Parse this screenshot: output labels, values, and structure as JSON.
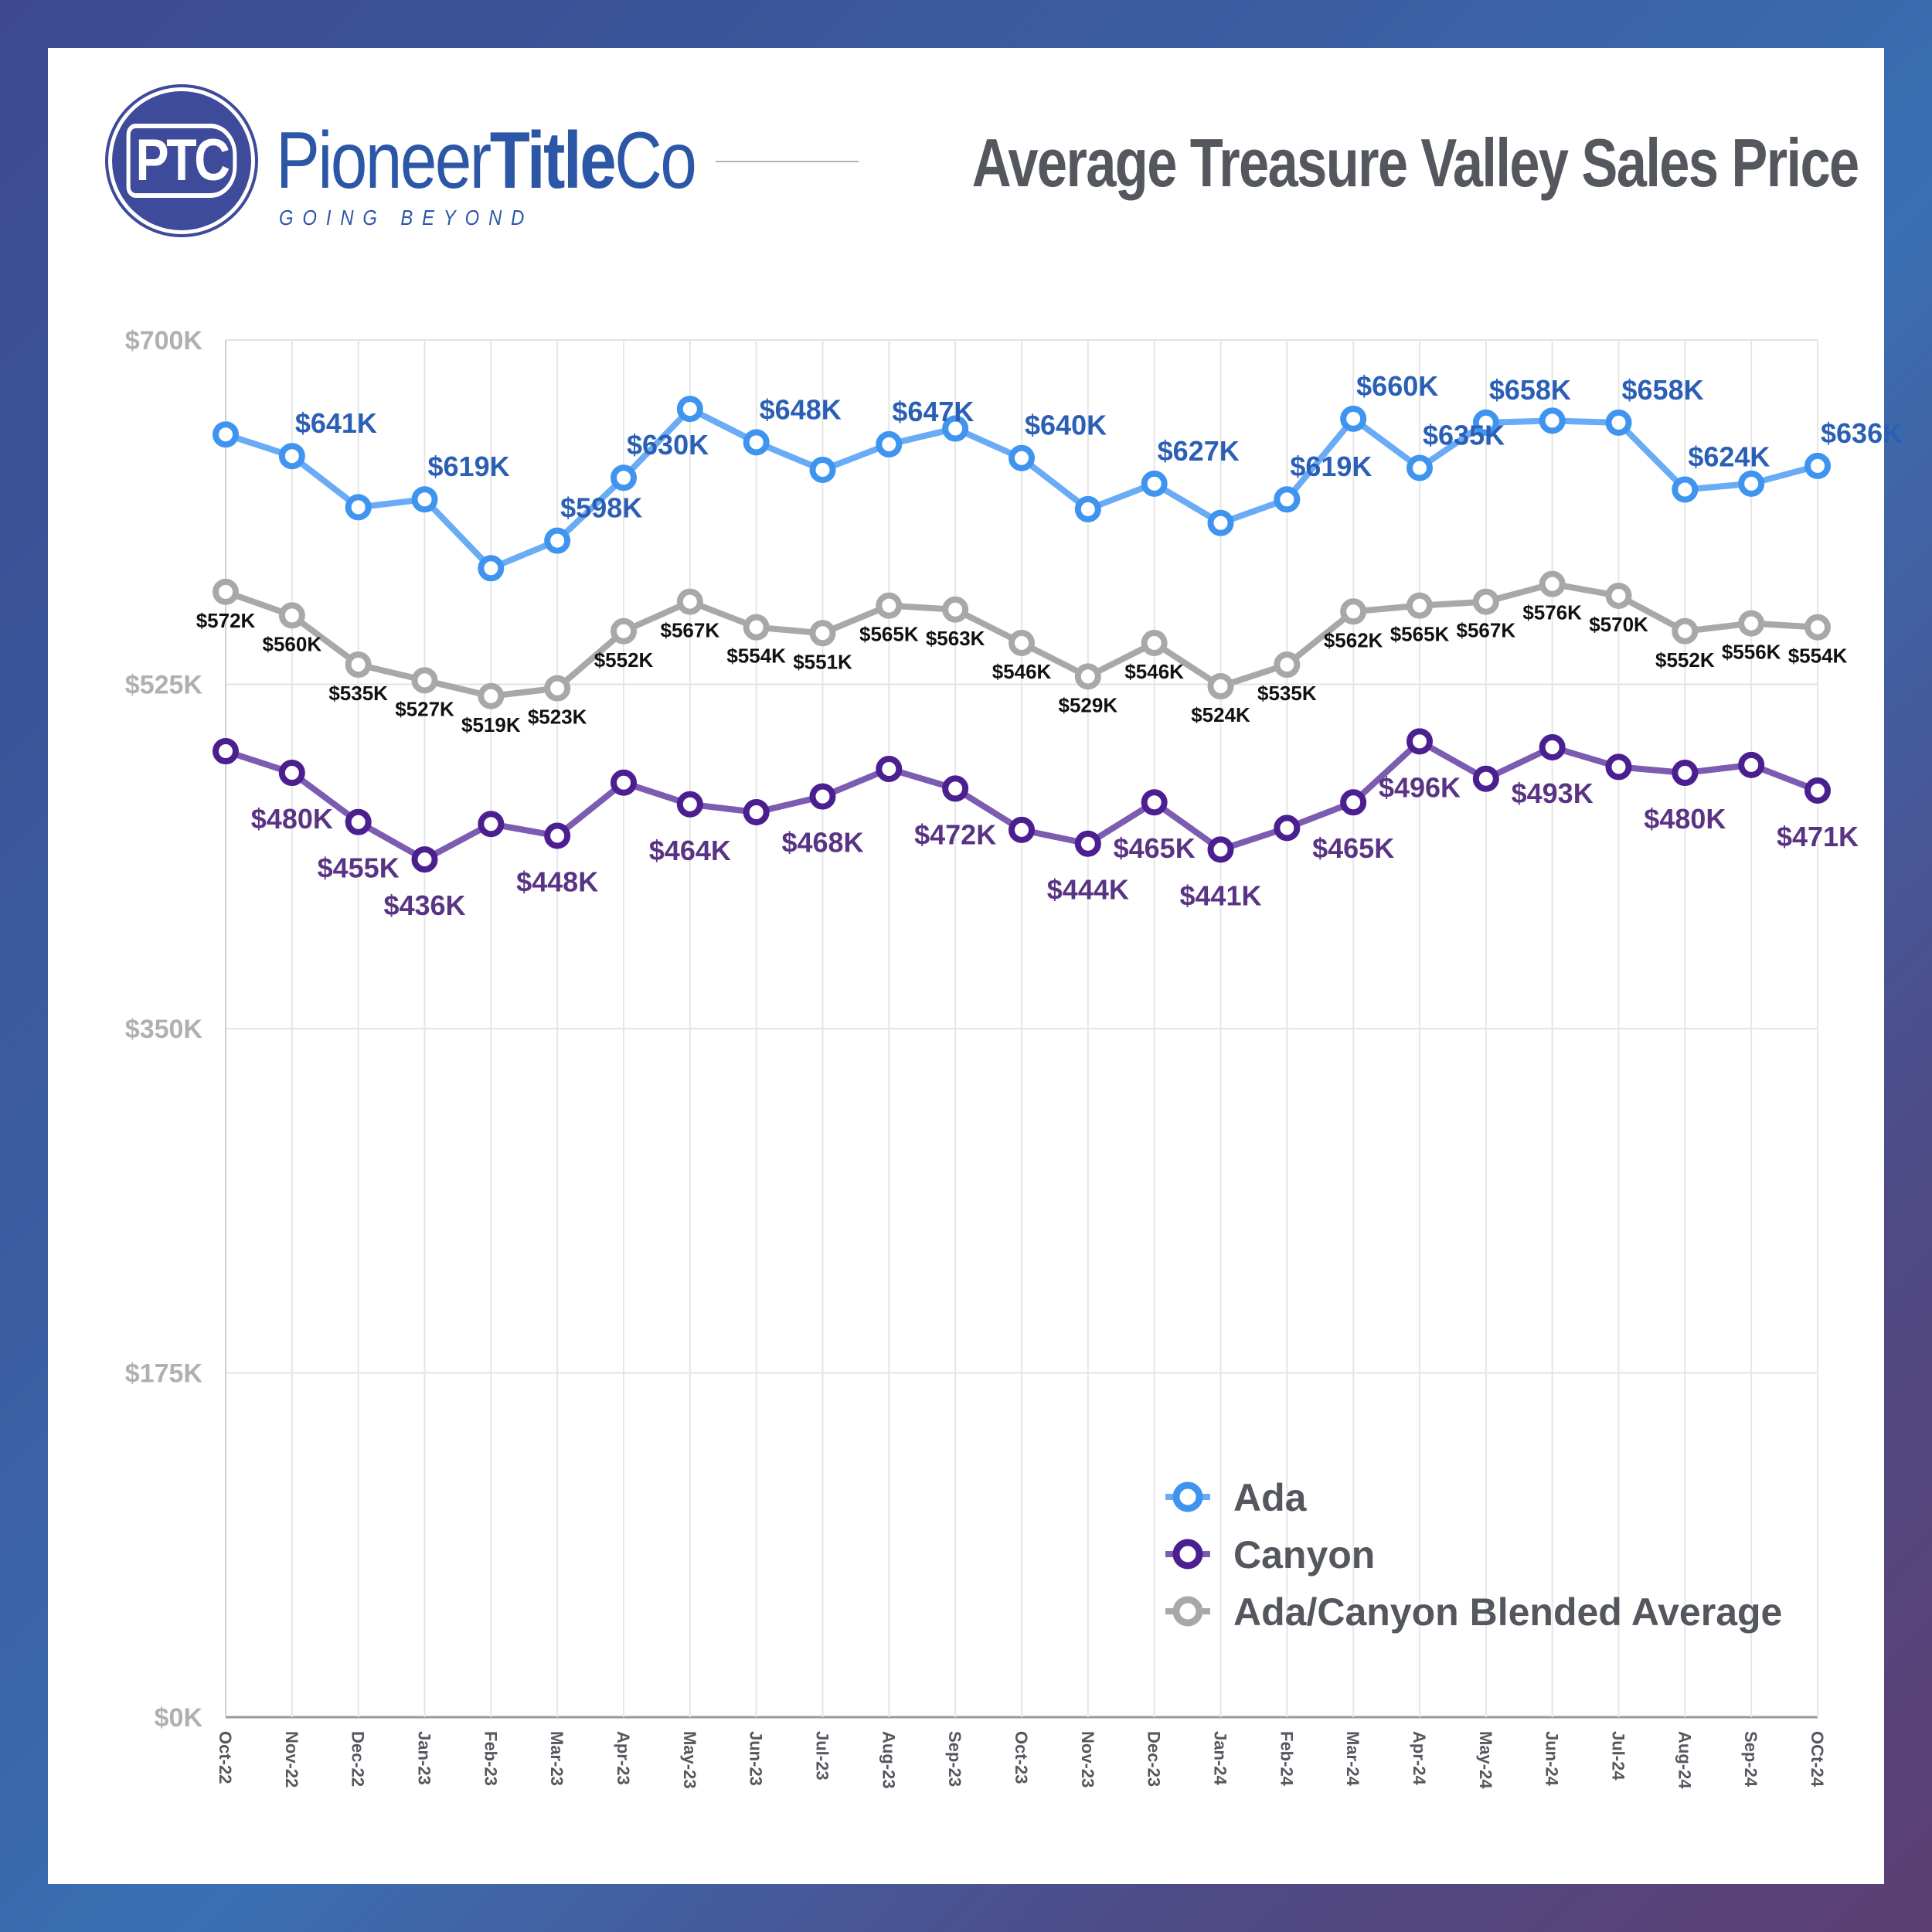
{
  "brand": {
    "monogram": "PTC",
    "name_light_1": "Pioneer",
    "name_bold": "Title",
    "name_light_2": "Co",
    "tagline": "GOING BEYOND"
  },
  "header": {
    "title": "Average Treasure Valley Sales Price"
  },
  "colors": {
    "ada_marker": "#3f94f0",
    "ada_line": "#6aabf5",
    "ada_label": "#2a5fb5",
    "canyon_marker": "#4b1f8f",
    "canyon_line": "#7b5cb0",
    "canyon_label": "#5a3484",
    "blend_marker": "#a8a8a8",
    "blend_line": "#a8a8a8",
    "blend_label": "#111111"
  },
  "chart_data": {
    "type": "line",
    "title": "Average Treasure Valley Sales Price",
    "xlabel": "",
    "ylabel": "",
    "ylim": [
      0,
      700
    ],
    "y_ticks": [
      0,
      175,
      350,
      525,
      700
    ],
    "y_tick_labels": [
      "$0K",
      "$175K",
      "$350K",
      "$525K",
      "$700K"
    ],
    "grid": true,
    "legend_position": "bottom-right",
    "categories": [
      "Oct-22",
      "Nov-22",
      "Dec-22",
      "Jan-23",
      "Feb-23",
      "Mar-23",
      "Apr-23",
      "May-23",
      "Jun-23",
      "Jul-23",
      "Aug-23",
      "Sep-23",
      "Oct-23",
      "Nov-23",
      "Dec-23",
      "Jan-24",
      "Feb-24",
      "Mar-24",
      "Apr-24",
      "May-24",
      "Jun-24",
      "Jul-24",
      "Aug-24",
      "Sep-24",
      "OCt-24"
    ],
    "series": [
      {
        "name": "Ada",
        "key": "ada",
        "values": [
          652,
          641,
          615,
          619,
          584,
          598,
          630,
          665,
          648,
          634,
          647,
          655,
          640,
          614,
          627,
          607,
          619,
          660,
          635,
          658,
          659,
          658,
          624,
          627,
          636
        ],
        "labels": [
          null,
          "$641K",
          null,
          "$619K",
          null,
          "$598K",
          "$630K",
          null,
          "$648K",
          null,
          "$647K",
          null,
          "$640K",
          null,
          "$627K",
          null,
          "$619K",
          "$660K",
          "$635K",
          "$658K",
          null,
          "$658K",
          "$624K",
          null,
          "$636K"
        ]
      },
      {
        "name": "Canyon",
        "key": "canyon",
        "values": [
          491,
          480,
          455,
          436,
          454,
          448,
          475,
          464,
          460,
          468,
          482,
          472,
          451,
          444,
          465,
          441,
          452,
          465,
          496,
          477,
          493,
          483,
          480,
          484,
          471
        ],
        "labels": [
          null,
          "$480K",
          "$455K",
          "$436K",
          null,
          "$448K",
          null,
          "$464K",
          null,
          "$468K",
          null,
          "$472K",
          null,
          "$444K",
          "$465K",
          "$441K",
          null,
          "$465K",
          "$496K",
          null,
          "$493K",
          null,
          "$480K",
          null,
          "$471K"
        ]
      },
      {
        "name": "Ada/Canyon Blended Average",
        "key": "blend",
        "values": [
          572,
          560,
          535,
          527,
          519,
          523,
          552,
          567,
          554,
          551,
          565,
          563,
          546,
          529,
          546,
          524,
          535,
          562,
          565,
          567,
          576,
          570,
          552,
          556,
          554
        ],
        "labels": [
          "$572K",
          "$560K",
          "$535K",
          "$527K",
          "$519K",
          "$523K",
          "$552K",
          "$567K",
          "$554K",
          "$551K",
          "$565K",
          "$563K",
          "$546K",
          "$529K",
          "$546K",
          "$524K",
          "$535K",
          "$562K",
          "$565K",
          "$567K",
          "$576K",
          "$570K",
          "$552K",
          "$556K",
          "$554K"
        ]
      }
    ],
    "legend": [
      "Ada",
      "Canyon",
      "Ada/Canyon Blended Average"
    ]
  }
}
